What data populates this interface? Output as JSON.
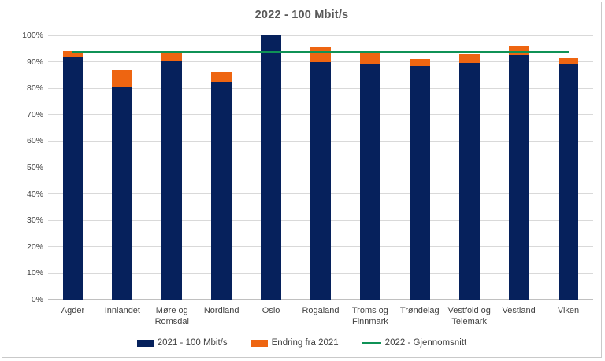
{
  "chart_data": {
    "type": "bar",
    "stacked": true,
    "title": "2022 - 100 Mbit/s",
    "categories": [
      "Agder",
      "Innlandet",
      "Møre og Romsdal",
      "Nordland",
      "Oslo",
      "Rogaland",
      "Troms og Finnmark",
      "Trøndelag",
      "Vestfold og Telemark",
      "Vestland",
      "Viken"
    ],
    "series": [
      {
        "name": "2021 - 100 Mbit/s",
        "type": "bar",
        "color": "#06215C",
        "values": [
          92,
          80.5,
          90.5,
          82.5,
          100,
          90,
          89,
          88.5,
          89.5,
          92.5,
          89
        ]
      },
      {
        "name": "Endring fra 2021",
        "type": "bar",
        "color": "#EE6511",
        "values": [
          2,
          6.5,
          3.5,
          3.5,
          0,
          5.5,
          4.5,
          2.5,
          3.5,
          3.5,
          2.5
        ]
      },
      {
        "name": "2022 - Gjennomsnitt",
        "type": "line",
        "color": "#0F9256",
        "value": 93.5
      }
    ],
    "ylabel": "",
    "xlabel": "",
    "ylim": [
      0,
      100
    ],
    "y_ticks": [
      "0%",
      "10%",
      "20%",
      "30%",
      "40%",
      "50%",
      "60%",
      "70%",
      "80%",
      "90%",
      "100%"
    ],
    "y_tick_format": "percent",
    "grid": true,
    "legend_position": "bottom"
  },
  "colors": {
    "bar_2021": "#06215C",
    "bar_endring": "#EE6511",
    "line_gjennomsnitt": "#0F9256",
    "gridline": "#D9D9D9",
    "axis_line": "#C0C0C0",
    "title_text": "#595959",
    "label_text": "#404040",
    "card_border": "#C9C9C9",
    "background": "#FFFFFF"
  }
}
